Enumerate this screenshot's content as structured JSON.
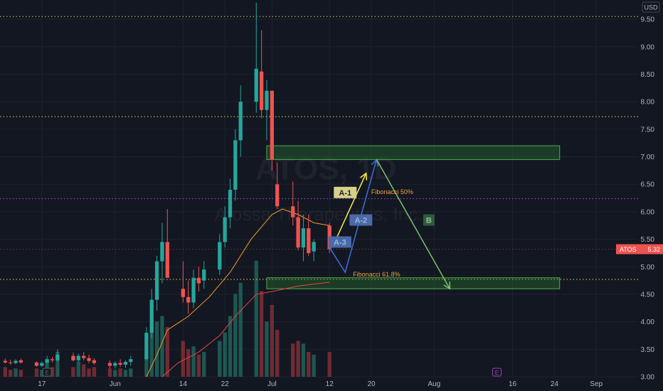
{
  "chart_data": {
    "type": "candlestick",
    "symbol": "ATOS",
    "watermark_title": "ATOS, 1D",
    "watermark_subtitle": "Atossa Therapeutics, Inc.",
    "currency": "USD",
    "last_price_label": "5.32",
    "ylim": [
      3.0,
      9.85
    ],
    "y_ticks": [
      3.0,
      3.5,
      4.0,
      4.5,
      5.0,
      5.5,
      6.0,
      6.5,
      7.0,
      7.5,
      8.0,
      8.5,
      9.0,
      9.5
    ],
    "x_ticks": [
      {
        "label": "17",
        "day": -14
      },
      {
        "label": "Jun",
        "day": 0
      },
      {
        "label": "14",
        "day": 13
      },
      {
        "label": "22",
        "day": 21
      },
      {
        "label": "Jul",
        "day": 30
      },
      {
        "label": "12",
        "day": 41
      },
      {
        "label": "20",
        "day": 49
      },
      {
        "label": "Aug",
        "day": 61
      },
      {
        "label": "16",
        "day": 76
      },
      {
        "label": "24",
        "day": 84
      },
      {
        "label": "Sep",
        "day": 92
      }
    ],
    "x_range": [
      -22,
      100
    ],
    "candles": [
      {
        "day": -21,
        "o": 3.29,
        "h": 3.33,
        "l": 3.24,
        "c": 3.26,
        "v": 0.35
      },
      {
        "day": -20,
        "o": 3.26,
        "h": 3.31,
        "l": 3.22,
        "c": 3.25,
        "v": 0.25
      },
      {
        "day": -19,
        "o": 3.25,
        "h": 3.32,
        "l": 3.23,
        "c": 3.29,
        "v": 0.3
      },
      {
        "day": -18,
        "o": 3.3,
        "h": 3.33,
        "l": 3.24,
        "c": 3.26,
        "v": 0.25
      },
      {
        "day": -15,
        "o": 3.26,
        "h": 3.28,
        "l": 3.18,
        "c": 3.2,
        "v": 0.3
      },
      {
        "day": -14,
        "o": 3.2,
        "h": 3.28,
        "l": 3.18,
        "c": 3.25,
        "v": 0.25
      },
      {
        "day": -13,
        "o": 3.26,
        "h": 3.38,
        "l": 3.24,
        "c": 3.32,
        "v": 0.55
      },
      {
        "day": -12,
        "o": 3.32,
        "h": 3.36,
        "l": 3.26,
        "c": 3.3,
        "v": 0.35
      },
      {
        "day": -11,
        "o": 3.3,
        "h": 3.5,
        "l": 3.28,
        "c": 3.4,
        "v": 0.9
      },
      {
        "day": -8,
        "o": 3.38,
        "h": 3.44,
        "l": 3.28,
        "c": 3.3,
        "v": 0.35
      },
      {
        "day": -7,
        "o": 3.3,
        "h": 3.42,
        "l": 3.27,
        "c": 3.38,
        "v": 0.55
      },
      {
        "day": -6,
        "o": 3.38,
        "h": 3.45,
        "l": 3.3,
        "c": 3.34,
        "v": 0.45
      },
      {
        "day": -5,
        "o": 3.34,
        "h": 3.4,
        "l": 3.25,
        "c": 3.29,
        "v": 0.3
      },
      {
        "day": -4,
        "o": 3.3,
        "h": 3.34,
        "l": 3.22,
        "c": 3.25,
        "v": 0.35
      },
      {
        "day": -1,
        "o": 3.25,
        "h": 3.3,
        "l": 3.15,
        "c": 3.2,
        "v": 0.3
      },
      {
        "day": 0,
        "o": 3.2,
        "h": 3.28,
        "l": 3.15,
        "c": 3.25,
        "v": 0.25
      },
      {
        "day": 1,
        "o": 3.25,
        "h": 3.32,
        "l": 3.18,
        "c": 3.22,
        "v": 0.3
      },
      {
        "day": 2,
        "o": 3.22,
        "h": 3.3,
        "l": 3.16,
        "c": 3.27,
        "v": 0.25
      },
      {
        "day": 3,
        "o": 3.27,
        "h": 3.38,
        "l": 3.2,
        "c": 3.32,
        "v": 0.3
      },
      {
        "day": 6,
        "o": 3.32,
        "h": 3.9,
        "l": 3.3,
        "c": 3.8,
        "v": 0.9
      },
      {
        "day": 7,
        "o": 3.8,
        "h": 4.6,
        "l": 3.7,
        "c": 4.4,
        "v": 1.6
      },
      {
        "day": 8,
        "o": 4.4,
        "h": 5.2,
        "l": 4.2,
        "c": 5.1,
        "v": 2.0
      },
      {
        "day": 9,
        "o": 5.1,
        "h": 5.8,
        "l": 4.7,
        "c": 5.45,
        "v": 2.2
      },
      {
        "day": 10,
        "o": 5.45,
        "h": 6.05,
        "l": 4.8,
        "c": 4.8,
        "v": 1.8
      },
      {
        "day": 13,
        "o": 4.6,
        "h": 5.1,
        "l": 4.35,
        "c": 4.45,
        "v": 1.3
      },
      {
        "day": 14,
        "o": 4.45,
        "h": 4.75,
        "l": 4.15,
        "c": 4.35,
        "v": 1.0
      },
      {
        "day": 15,
        "o": 4.35,
        "h": 4.95,
        "l": 4.25,
        "c": 4.8,
        "v": 1.1
      },
      {
        "day": 16,
        "o": 4.8,
        "h": 5.0,
        "l": 4.55,
        "c": 4.7,
        "v": 0.8
      },
      {
        "day": 17,
        "o": 4.75,
        "h": 5.1,
        "l": 4.6,
        "c": 4.95,
        "v": 0.9
      },
      {
        "day": 20,
        "o": 4.95,
        "h": 5.6,
        "l": 4.85,
        "c": 5.45,
        "v": 1.3
      },
      {
        "day": 21,
        "o": 5.45,
        "h": 6.1,
        "l": 5.35,
        "c": 5.9,
        "v": 1.6
      },
      {
        "day": 22,
        "o": 5.9,
        "h": 6.6,
        "l": 5.7,
        "c": 6.4,
        "v": 2.2
      },
      {
        "day": 23,
        "o": 6.4,
        "h": 7.5,
        "l": 6.2,
        "c": 7.3,
        "v": 3.0
      },
      {
        "day": 24,
        "o": 7.3,
        "h": 8.3,
        "l": 7.0,
        "c": 8.0,
        "v": 3.4
      },
      {
        "day": 27,
        "o": 8.0,
        "h": 9.8,
        "l": 7.8,
        "c": 8.6,
        "v": 4.2
      },
      {
        "day": 28,
        "o": 8.55,
        "h": 9.3,
        "l": 7.7,
        "c": 7.85,
        "v": 3.1
      },
      {
        "day": 29,
        "o": 7.85,
        "h": 8.4,
        "l": 7.3,
        "c": 8.2,
        "v": 2.0
      },
      {
        "day": 30,
        "o": 8.2,
        "h": 8.2,
        "l": 6.75,
        "c": 6.95,
        "v": 2.6
      },
      {
        "day": 31,
        "o": 6.5,
        "h": 6.9,
        "l": 6.05,
        "c": 6.1,
        "v": 1.7
      },
      {
        "day": 34,
        "o": 6.1,
        "h": 6.55,
        "l": 5.75,
        "c": 5.9,
        "v": 1.2
      },
      {
        "day": 35,
        "o": 5.9,
        "h": 6.2,
        "l": 5.3,
        "c": 5.35,
        "v": 1.3
      },
      {
        "day": 36,
        "o": 5.35,
        "h": 5.95,
        "l": 5.1,
        "c": 5.7,
        "v": 1.2
      },
      {
        "day": 37,
        "o": 5.7,
        "h": 5.95,
        "l": 5.2,
        "c": 5.25,
        "v": 0.9
      },
      {
        "day": 38,
        "o": 5.28,
        "h": 5.5,
        "l": 5.1,
        "c": 5.45,
        "v": 0.8
      },
      {
        "day": 41,
        "o": 5.75,
        "h": 5.8,
        "l": 5.25,
        "c": 5.32,
        "v": 0.9
      }
    ],
    "moving_averages": [
      {
        "color": "#f59b1f",
        "points": [
          [
            6,
            3.0
          ],
          [
            8,
            3.4
          ],
          [
            10,
            3.85
          ],
          [
            14,
            4.1
          ],
          [
            18,
            4.45
          ],
          [
            22,
            4.9
          ],
          [
            26,
            5.5
          ],
          [
            30,
            5.95
          ],
          [
            32,
            6.05
          ],
          [
            35,
            5.95
          ],
          [
            38,
            5.8
          ],
          [
            41,
            5.75
          ]
        ]
      },
      {
        "color": "#e8443f",
        "points": [
          [
            9,
            3.0
          ],
          [
            12,
            3.25
          ],
          [
            16,
            3.45
          ],
          [
            20,
            3.75
          ],
          [
            23,
            4.1
          ],
          [
            27,
            4.5
          ],
          [
            30,
            4.55
          ],
          [
            35,
            4.65
          ],
          [
            41,
            4.72
          ]
        ]
      }
    ],
    "horizontal_lines": [
      {
        "price": 9.55,
        "color": "#c7c95a"
      },
      {
        "price": 7.73,
        "color": "#f0d04a"
      },
      {
        "price": 6.24,
        "color": "#b24bdb"
      },
      {
        "price": 5.32,
        "color": "#6b3c45"
      },
      {
        "price": 4.77,
        "color": "#f0d04a"
      }
    ],
    "zones": [
      {
        "from": 6.95,
        "to": 7.2,
        "x_start": 29,
        "x_end": 85
      },
      {
        "from": 4.6,
        "to": 4.8,
        "x_start": 29,
        "x_end": 85
      }
    ],
    "fib_labels": [
      {
        "text": "Fibonacci 50%",
        "day": 53,
        "price": 6.32
      },
      {
        "text": "Fibonacci 61.8%",
        "day": 50,
        "price": 4.82
      }
    ],
    "wave_labels": [
      {
        "text": "A-1",
        "day": 44,
        "price": 6.35,
        "bg": "#d7d08b",
        "fg": "#1b1e26"
      },
      {
        "text": "A-2",
        "day": 47,
        "price": 5.85,
        "bg": "#4a6aa8",
        "fg": "#9cb4e0"
      },
      {
        "text": "A-3",
        "day": 43,
        "price": 5.45,
        "bg": "#4a6aa8",
        "fg": "#9cb4e0"
      },
      {
        "text": "B",
        "day": 60,
        "price": 5.85,
        "bg": "#2f5a3e",
        "fg": "#8fbf91"
      }
    ],
    "arrows": [
      {
        "color": "#f7ee3e",
        "points": [
          [
            42,
            5.45
          ],
          [
            48,
            6.7
          ]
        ]
      },
      {
        "color": "#3f6fdc",
        "points": [
          [
            41,
            5.35
          ],
          [
            44,
            4.9
          ],
          [
            50,
            6.95
          ]
        ]
      },
      {
        "color": "#78c26b",
        "points": [
          [
            50,
            6.95
          ],
          [
            64,
            4.6
          ]
        ]
      }
    ],
    "events": [
      {
        "text": "E",
        "day": -13,
        "color": "#4a6c64"
      },
      {
        "text": "E",
        "day": 73,
        "color": "#9a3fb5"
      }
    ],
    "volume_max": 4.5
  }
}
